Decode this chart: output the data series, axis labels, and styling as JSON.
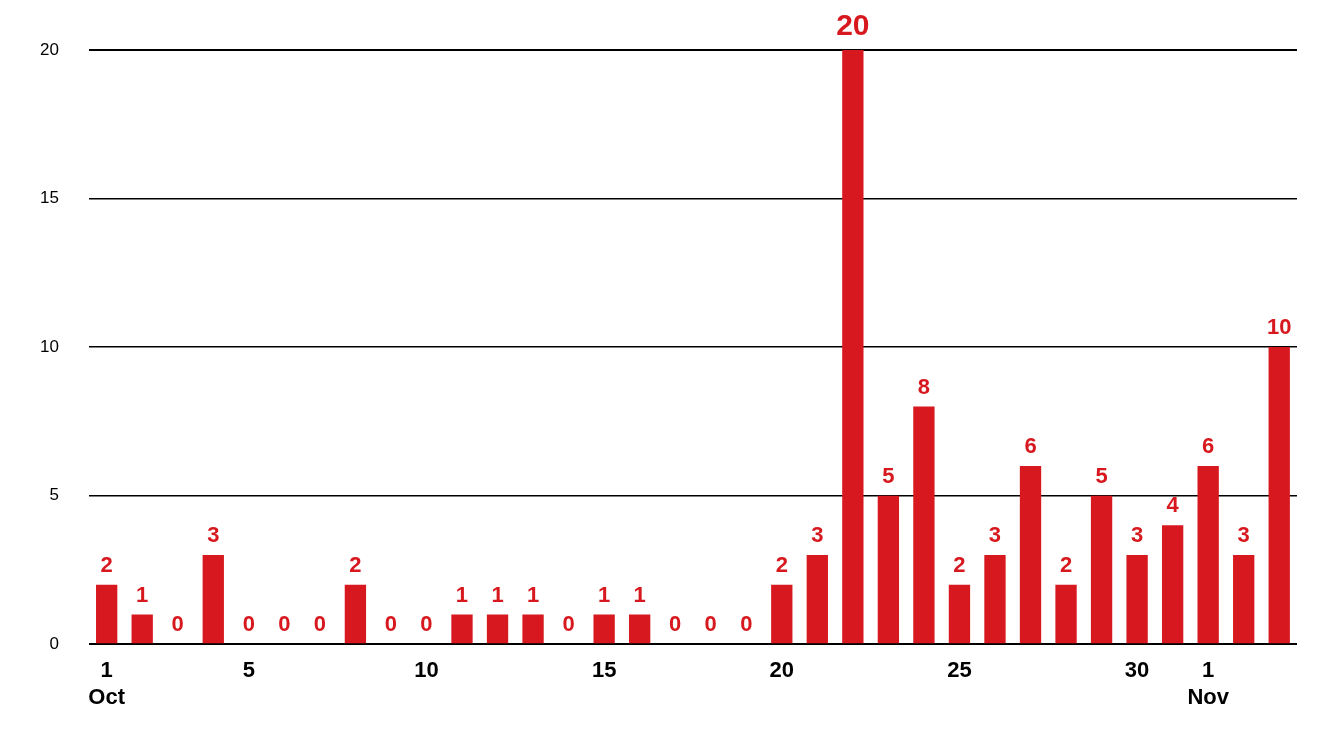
{
  "chart_data": {
    "type": "bar",
    "categories": [
      "1\nOct",
      null,
      null,
      null,
      "5",
      null,
      null,
      null,
      null,
      "10",
      null,
      null,
      null,
      null,
      "15",
      null,
      null,
      null,
      null,
      "20",
      null,
      null,
      null,
      null,
      "25",
      null,
      null,
      null,
      null,
      "30",
      null,
      "1\nNov",
      null,
      null
    ],
    "values": [
      2,
      1,
      0,
      3,
      0,
      0,
      0,
      2,
      0,
      0,
      1,
      1,
      1,
      0,
      1,
      1,
      0,
      0,
      0,
      2,
      3,
      20,
      5,
      8,
      2,
      3,
      6,
      2,
      5,
      3,
      4,
      6,
      3,
      10
    ],
    "color": "#d7191f",
    "ylim": [
      0,
      20
    ],
    "yticks": [
      0,
      5,
      10,
      15,
      20
    ],
    "grid": "y",
    "data_labels": true,
    "legend": false
  }
}
